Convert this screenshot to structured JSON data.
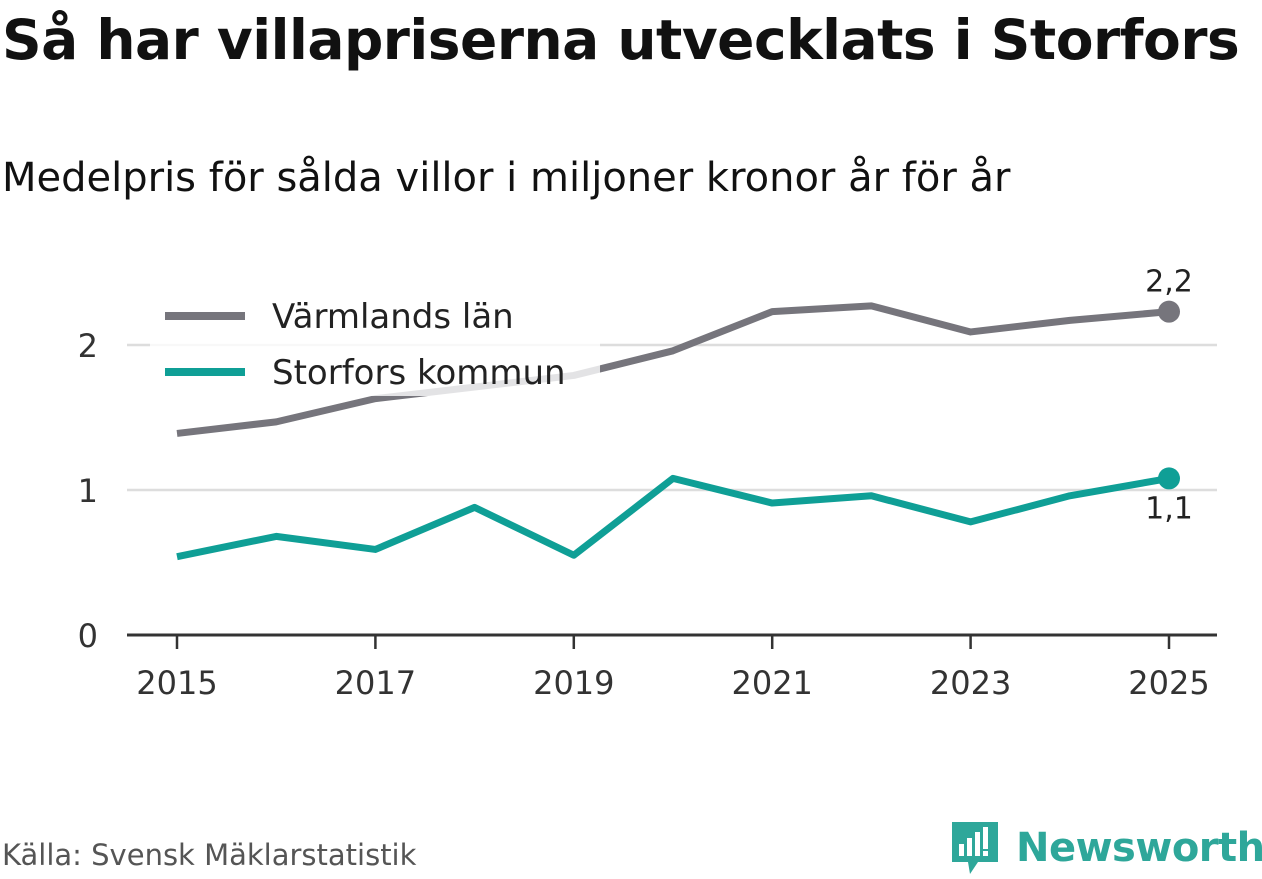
{
  "title": "Så har villapriserna utvecklats i Storfors",
  "subtitle": "Medelpris för sålda villor i miljoner kronor år för år",
  "source": "Källa: Svensk Mäklarstatistik",
  "brand": {
    "name": "Newsworthy",
    "logo_icon": "newsworthy-logo-icon"
  },
  "colors": {
    "grid": "#dddddd",
    "axis": "#333333",
    "text": "#333333",
    "brand": "#2ea79a"
  },
  "chart_data": {
    "type": "line",
    "title": "Så har villapriserna utvecklats i Storfors",
    "subtitle": "Medelpris för sålda villor i miljoner kronor år för år",
    "xlabel": "",
    "ylabel": "",
    "x": [
      2015,
      2016,
      2017,
      2018,
      2019,
      2020,
      2021,
      2022,
      2023,
      2024,
      2025
    ],
    "xticks": [
      "2015",
      "2017",
      "2019",
      "2021",
      "2023",
      "2025"
    ],
    "yticks": [
      "0",
      "1",
      "2"
    ],
    "ylim": [
      0,
      2.5
    ],
    "grid": true,
    "legend_position": "top-left",
    "series": [
      {
        "name": "Värmlands län",
        "color": "#76757c",
        "values": [
          1.39,
          1.47,
          1.63,
          1.71,
          1.79,
          1.96,
          2.23,
          2.27,
          2.09,
          2.17,
          2.23
        ],
        "end_label": "2,2"
      },
      {
        "name": "Storfors kommun",
        "color": "#0f9f96",
        "values": [
          0.54,
          0.68,
          0.59,
          0.88,
          0.55,
          1.08,
          0.91,
          0.96,
          0.78,
          0.96,
          1.08
        ],
        "end_label": "1,1"
      }
    ]
  }
}
